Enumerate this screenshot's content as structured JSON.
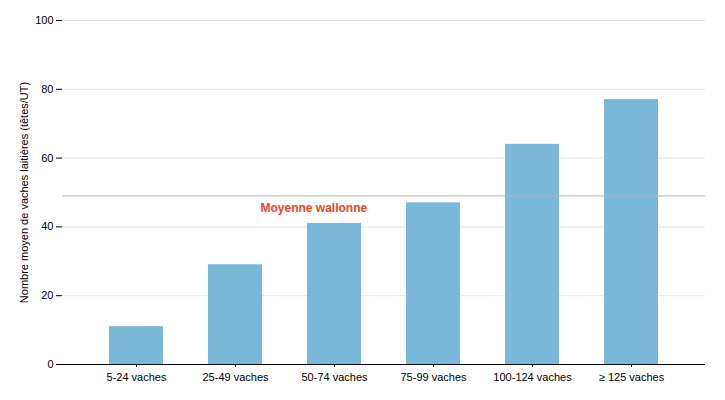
{
  "chart_data": {
    "type": "bar",
    "categories": [
      "5-24 vaches",
      "25-49 vaches",
      "50-74 vaches",
      "75-99 vaches",
      "100-124 vaches",
      "≥ 125 vaches"
    ],
    "values": [
      11,
      29,
      41,
      47,
      64,
      77
    ],
    "color": "#7ab8d9",
    "ylabel": "Nombre moyen de vaches laitières (têtes/UT)",
    "ylim": [
      0,
      100
    ],
    "yticks": [
      0,
      20,
      40,
      60,
      80,
      100
    ],
    "grid": true,
    "reference_line": {
      "value": 49,
      "label": "Moyenne wallonne",
      "color": "#b0b0b0",
      "label_color": "#e84428"
    }
  }
}
